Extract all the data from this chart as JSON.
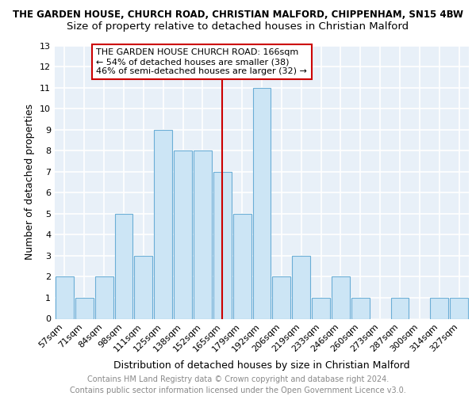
{
  "title_line1": "THE GARDEN HOUSE, CHURCH ROAD, CHRISTIAN MALFORD, CHIPPENHAM, SN15 4BW",
  "title_line2": "Size of property relative to detached houses in Christian Malford",
  "xlabel": "Distribution of detached houses by size in Christian Malford",
  "ylabel": "Number of detached properties",
  "categories": [
    "57sqm",
    "71sqm",
    "84sqm",
    "98sqm",
    "111sqm",
    "125sqm",
    "138sqm",
    "152sqm",
    "165sqm",
    "179sqm",
    "192sqm",
    "206sqm",
    "219sqm",
    "233sqm",
    "246sqm",
    "260sqm",
    "273sqm",
    "287sqm",
    "300sqm",
    "314sqm",
    "327sqm"
  ],
  "values": [
    2,
    1,
    2,
    5,
    3,
    9,
    8,
    8,
    7,
    5,
    11,
    2,
    3,
    1,
    2,
    1,
    0,
    1,
    0,
    1,
    1
  ],
  "bar_color": "#cce5f5",
  "bar_edge_color": "#6baed6",
  "vline_x_index": 8,
  "vline_color": "#cc0000",
  "annotation_text": "THE GARDEN HOUSE CHURCH ROAD: 166sqm\n← 54% of detached houses are smaller (38)\n46% of semi-detached houses are larger (32) →",
  "annotation_box_color": "#ffffff",
  "annotation_box_edge": "#cc0000",
  "ylim": [
    0,
    13
  ],
  "yticks": [
    0,
    1,
    2,
    3,
    4,
    5,
    6,
    7,
    8,
    9,
    10,
    11,
    12,
    13
  ],
  "footer_line1": "Contains HM Land Registry data © Crown copyright and database right 2024.",
  "footer_line2": "Contains public sector information licensed under the Open Government Licence v3.0.",
  "background_color": "#e8f0f8",
  "grid_color": "#ffffff",
  "title_fontsize": 8.5,
  "subtitle_fontsize": 9.5,
  "axis_label_fontsize": 9,
  "tick_fontsize": 8,
  "footer_fontsize": 7,
  "annot_fontsize": 8
}
